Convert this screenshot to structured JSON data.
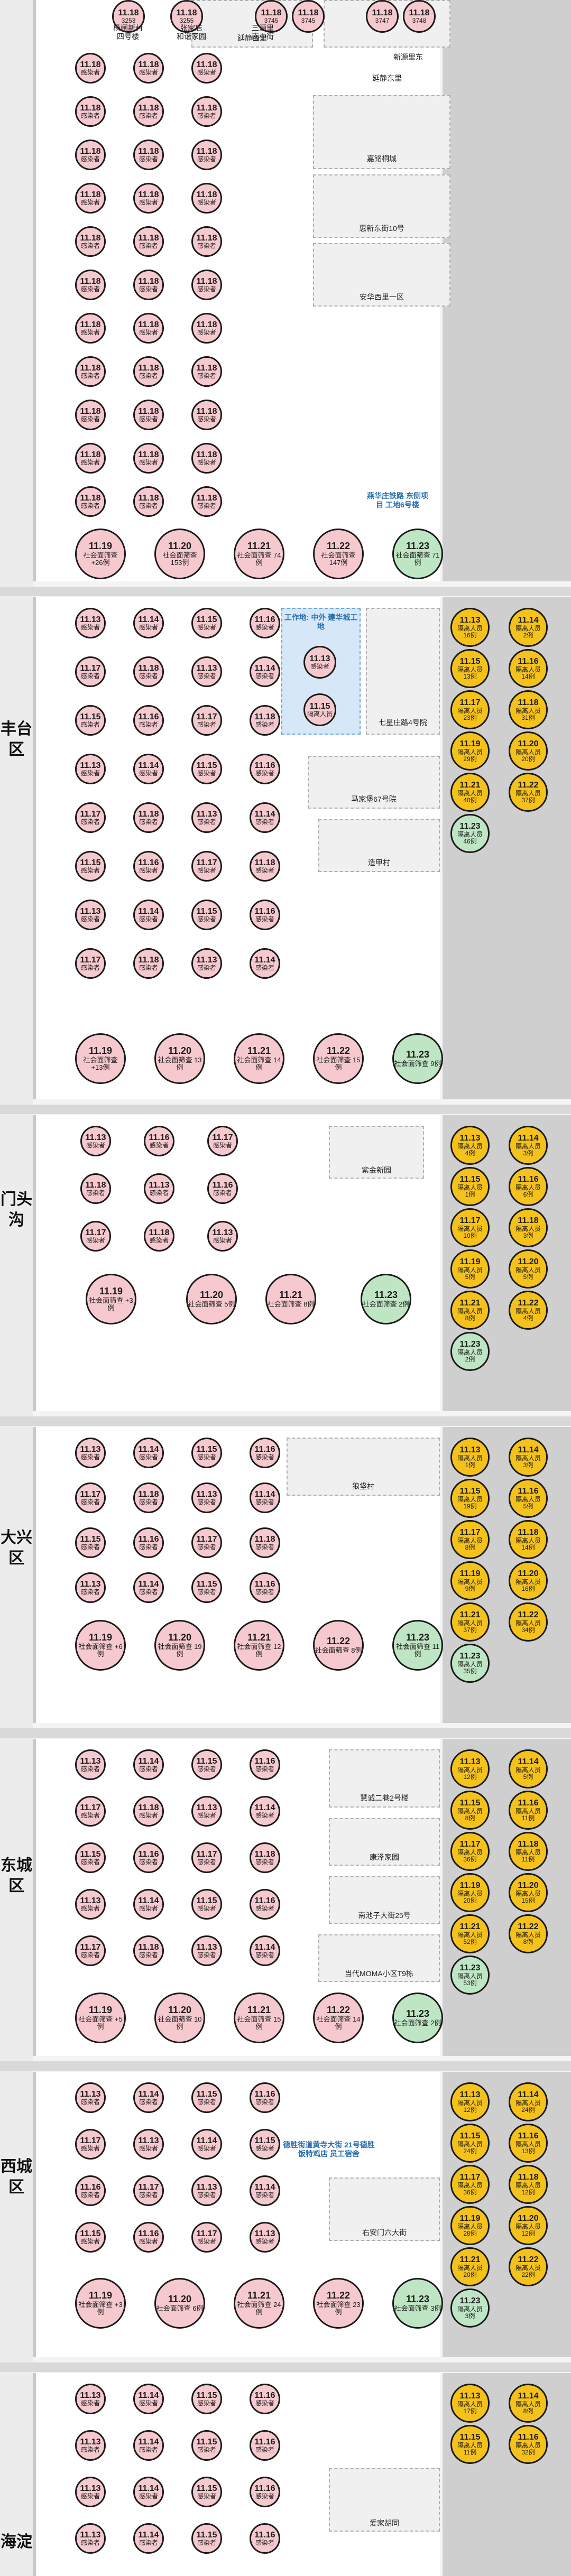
{
  "districts": {
    "fengtai": "丰台区",
    "mentougou": "门头沟",
    "daxing": "大兴区",
    "dongcheng": "东城区",
    "xicheng": "西城区",
    "haidian": "海淀"
  },
  "common": {
    "infected": "感染者",
    "isolated": "隔离人员"
  },
  "top": {
    "c1": {
      "d": "11.18",
      "t": "3253"
    },
    "c2": {
      "d": "11.18",
      "t": "3255"
    },
    "c3": {
      "d": "11.18",
      "t": "3745"
    },
    "c4": {
      "d": "11.18",
      "t": "3745"
    },
    "c5": {
      "d": "11.18",
      "t": "3747"
    },
    "c6": {
      "d": "11.18",
      "t": "3748"
    },
    "l1": "杨闸新村\n四号楼",
    "l2": "张家店\n和谐家园",
    "l3": "三源里\n南小街",
    "l4": "延静西里",
    "l5": "嘉铭桐城",
    "l6": "延静东里",
    "l7": "新源里东",
    "l8": "惠新东街10号",
    "l9": "安华西里一区",
    "s1": {
      "d": "11.19",
      "t": "社会面筛查\n+26例"
    },
    "s2": {
      "d": "11.20",
      "t": "社会面筛查\n153例"
    },
    "s3": {
      "d": "11.21",
      "t": "社会面筛查\n74例"
    },
    "s4": {
      "d": "11.22",
      "t": "社会面筛查\n147例"
    },
    "s5": {
      "d": "11.23",
      "t": "社会面筛查\n71例"
    },
    "blue": "燕华庄铁路\n东侧项目\n工地6号楼"
  },
  "fengtai": {
    "blue": "工作地: 中外\n建华城工地",
    "qiqu": "七星庄路4号院",
    "majia": "马家堡67号院",
    "zaocun": "造甲村",
    "s1": {
      "d": "11.19",
      "t": "社会面筛查\n+13例"
    },
    "s2": {
      "d": "11.20",
      "t": "社会面筛查\n13例"
    },
    "s3": {
      "d": "11.21",
      "t": "社会面筛查\n14例"
    },
    "s4": {
      "d": "11.22",
      "t": "社会面筛查\n15例"
    },
    "s5": {
      "d": "11.23",
      "t": "社会面筛查\n9例"
    },
    "iso": [
      {
        "d": "11.13",
        "t": "隔离人员\n16例"
      },
      {
        "d": "11.14",
        "t": "隔离人员\n2例"
      },
      {
        "d": "11.15",
        "t": "隔离人员\n13例"
      },
      {
        "d": "11.16",
        "t": "隔离人员\n14例"
      },
      {
        "d": "11.17",
        "t": "隔离人员\n23例"
      },
      {
        "d": "11.18",
        "t": "隔离人员\n31例"
      },
      {
        "d": "11.19",
        "t": "隔离人员\n29例"
      },
      {
        "d": "11.20",
        "t": "隔离人员\n20例"
      },
      {
        "d": "11.21",
        "t": "隔离人员\n40例"
      },
      {
        "d": "11.22",
        "t": "隔离人员\n37例"
      },
      {
        "d": "11.23",
        "t": "隔离人员\n46例"
      }
    ]
  },
  "mentougou": {
    "ziJin": "紫金新园",
    "s1": {
      "d": "11.19",
      "t": "社会面筛查\n+3例"
    },
    "s2": {
      "d": "11.20",
      "t": "社会面筛查\n5例"
    },
    "s3": {
      "d": "11.21",
      "t": "社会面筛查\n8例"
    },
    "s4": {
      "d": "11.23",
      "t": "社会面筛查\n2例"
    },
    "iso": [
      {
        "d": "11.13",
        "t": "隔离人员\n4例"
      },
      {
        "d": "11.14",
        "t": "隔离人员\n3例"
      },
      {
        "d": "11.15",
        "t": "隔离人员\n1例"
      },
      {
        "d": "11.16",
        "t": "隔离人员\n6例"
      },
      {
        "d": "11.17",
        "t": "隔离人员\n10例"
      },
      {
        "d": "11.18",
        "t": "隔离人员\n3例"
      },
      {
        "d": "11.19",
        "t": "隔离人员\n5例"
      },
      {
        "d": "11.20",
        "t": "隔离人员\n5例"
      },
      {
        "d": "11.21",
        "t": "隔离人员\n8例"
      },
      {
        "d": "11.22",
        "t": "隔离人员\n4例"
      },
      {
        "d": "11.23",
        "t": "隔离人员\n2例"
      }
    ]
  },
  "daxing": {
    "yingjiacun": "狼垡村",
    "s1": {
      "d": "11.19",
      "t": "社会面筛查\n+6例"
    },
    "s2": {
      "d": "11.20",
      "t": "社会面筛查\n19例"
    },
    "s3": {
      "d": "11.21",
      "t": "社会面筛查\n12例"
    },
    "s4": {
      "d": "11.22",
      "t": "社会面筛查\n8例"
    },
    "s5": {
      "d": "11.23",
      "t": "社会面筛查\n11例"
    },
    "iso": [
      {
        "d": "11.13",
        "t": "隔离人员\n1例"
      },
      {
        "d": "11.14",
        "t": "隔离人员\n3例"
      },
      {
        "d": "11.15",
        "t": "隔离人员\n19例"
      },
      {
        "d": "11.16",
        "t": "隔离人员\n5例"
      },
      {
        "d": "11.17",
        "t": "隔离人员\n8例"
      },
      {
        "d": "11.18",
        "t": "隔离人员\n14例"
      },
      {
        "d": "11.19",
        "t": "隔离人员\n9例"
      },
      {
        "d": "11.20",
        "t": "隔离人员\n16例"
      },
      {
        "d": "11.21",
        "t": "隔离人员\n37例"
      },
      {
        "d": "11.22",
        "t": "隔离人员\n34例"
      },
      {
        "d": "11.23",
        "t": "隔离人员\n35例"
      }
    ]
  },
  "dongcheng": {
    "jinghua": "慧诚二巷2号楼",
    "kangze": "康泽家园",
    "nanhe": "南池子大街25号",
    "moma": "当代MOMA小区T9栋",
    "s1": {
      "d": "11.19",
      "t": "社会面筛查\n+5例"
    },
    "s2": {
      "d": "11.20",
      "t": "社会面筛查\n10例"
    },
    "s3": {
      "d": "11.21",
      "t": "社会面筛查\n15例"
    },
    "s4": {
      "d": "11.22",
      "t": "社会面筛查\n14例"
    },
    "s5": {
      "d": "11.23",
      "t": "社会面筛查\n2例"
    },
    "iso": [
      {
        "d": "11.13",
        "t": "隔离人员\n12例"
      },
      {
        "d": "11.14",
        "t": "隔离人员\n5例"
      },
      {
        "d": "11.15",
        "t": "隔离人员\n8例"
      },
      {
        "d": "11.16",
        "t": "隔离人员\n11例"
      },
      {
        "d": "11.17",
        "t": "隔离人员\n36例"
      },
      {
        "d": "11.18",
        "t": "隔离人员\n11例"
      },
      {
        "d": "11.19",
        "t": "隔离人员\n20例"
      },
      {
        "d": "11.20",
        "t": "隔离人员\n15例"
      },
      {
        "d": "11.21",
        "t": "隔离人员\n52例"
      },
      {
        "d": "11.22",
        "t": "隔离人员\n8例"
      },
      {
        "d": "11.23",
        "t": "隔离人员\n53例"
      }
    ]
  },
  "xicheng": {
    "blue": "德胜街道黄寺大街\n21号德胜饭特鸡店\n员工宿舍",
    "youan": "右安门六大街",
    "s1": {
      "d": "11.19",
      "t": "社会面筛查\n+3例"
    },
    "s2": {
      "d": "11.20",
      "t": "社会面筛查\n6例"
    },
    "s3": {
      "d": "11.21",
      "t": "社会面筛查\n24例"
    },
    "s4": {
      "d": "11.22",
      "t": "社会面筛查\n23例"
    },
    "s5": {
      "d": "11.23",
      "t": "社会面筛查\n3例"
    },
    "iso": [
      {
        "d": "11.13",
        "t": "隔离人员\n12例"
      },
      {
        "d": "11.14",
        "t": "隔离人员\n24例"
      },
      {
        "d": "11.15",
        "t": "隔离人员\n24例"
      },
      {
        "d": "11.16",
        "t": "隔离人员\n13例"
      },
      {
        "d": "11.17",
        "t": "隔离人员\n36例"
      },
      {
        "d": "11.18",
        "t": "隔离人员\n12例"
      },
      {
        "d": "11.19",
        "t": "隔离人员\n28例"
      },
      {
        "d": "11.20",
        "t": "隔离人员\n12例"
      },
      {
        "d": "11.21",
        "t": "隔离人员\n20例"
      },
      {
        "d": "11.22",
        "t": "隔离人员\n22例"
      },
      {
        "d": "11.23",
        "t": "隔离人员\n3例"
      }
    ]
  },
  "haidian": {
    "aizhaowu": "爱家胡同",
    "iso": [
      {
        "d": "11.13",
        "t": "隔离人员\n17例"
      },
      {
        "d": "11.14",
        "t": "隔离人员\n8例"
      },
      {
        "d": "11.15",
        "t": "隔离人员\n11例"
      },
      {
        "d": "11.16",
        "t": "隔离人员\n32例"
      }
    ]
  }
}
